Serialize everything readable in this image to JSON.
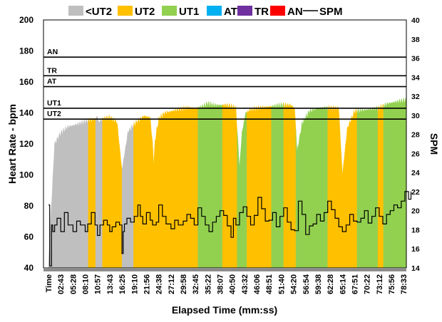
{
  "chart_data": {
    "type": "area",
    "title": "",
    "xlabel": "Elapsed Time (mm:ss)",
    "ylabel": "Heart Rate - bpm",
    "y2label": "SPM",
    "ylim": [
      40,
      200
    ],
    "y2lim": [
      14,
      40
    ],
    "yticks": [
      40,
      60,
      80,
      100,
      120,
      140,
      160,
      180,
      200
    ],
    "y2ticks": [
      14,
      16,
      18,
      20,
      22,
      24,
      26,
      28,
      30,
      32,
      34,
      36,
      38,
      40
    ],
    "x_tick_labels": [
      "Time",
      "02:43",
      "05:28",
      "08:10",
      "10:57",
      "13:43",
      "16:25",
      "19:10",
      "21:56",
      "24:38",
      "27:12",
      "29:58",
      "32:45",
      "35:22",
      "38:07",
      "40:50",
      "43:32",
      "46:06",
      "48:51",
      "51:40",
      "54:20",
      "56:54",
      "59:38",
      "62:28",
      "65:14",
      "67:51",
      "70:22",
      "73:12",
      "75:56",
      "78:33"
    ],
    "legend": {
      "placement": "top",
      "entries": [
        {
          "label": "<UT2",
          "color": "#bfbfbf",
          "kind": "area"
        },
        {
          "label": "UT2",
          "color": "#ffc000",
          "kind": "area"
        },
        {
          "label": "UT1",
          "color": "#92d050",
          "kind": "area"
        },
        {
          "label": "AT",
          "color": "#00b0f0",
          "kind": "area"
        },
        {
          "label": "TR",
          "color": "#7030a0",
          "kind": "area"
        },
        {
          "label": "AN",
          "color": "#ff0000",
          "kind": "area"
        },
        {
          "label": "SPM",
          "color": "#000000",
          "kind": "line"
        }
      ]
    },
    "zone_thresholds": [
      {
        "label": "UT2",
        "hr": 136
      },
      {
        "label": "UT1",
        "hr": 143
      },
      {
        "label": "AT",
        "hr": 157
      },
      {
        "label": "TR",
        "hr": 164
      },
      {
        "label": "AN",
        "hr": 176
      }
    ],
    "hr_series": {
      "name": "Heart Rate",
      "x_tick_index": [
        0,
        0.5,
        1,
        1.6,
        2.5,
        3.2,
        3.8,
        4.0,
        4.1,
        4.4,
        5.0,
        5.6,
        6.0,
        6.5,
        7.2,
        7.8,
        8.3,
        8.5,
        8.6,
        8.7,
        9.0,
        9.5,
        10.0,
        10.6,
        11.3,
        12.0,
        12.5,
        12.8,
        13.0,
        13.5,
        14.5,
        15.0,
        15.3,
        15.6,
        15.8,
        16.1,
        16.5,
        17.2,
        18.0,
        19.0,
        19.8,
        20.1,
        20.3,
        20.7,
        21.3,
        22.0,
        23.0,
        23.7,
        24.0,
        24.4,
        25.0,
        26.0,
        27.0,
        27.7,
        28.3,
        29.0,
        29.6
      ],
      "bpm": [
        43,
        120,
        127,
        131,
        133,
        135,
        136,
        138,
        134,
        136,
        137,
        134,
        103,
        128,
        134,
        138,
        137,
        120,
        107,
        122,
        136,
        140,
        141,
        142,
        143,
        143,
        144,
        145,
        146,
        145,
        145,
        144,
        143,
        105,
        127,
        140,
        142,
        143,
        144,
        145,
        145,
        143,
        115,
        133,
        141,
        143,
        143,
        143,
        100,
        130,
        141,
        142,
        143,
        146,
        147,
        148,
        149
      ],
      "zone_segments": [
        {
          "zone": "<UT2",
          "from": 0,
          "to": 3.25
        },
        {
          "zone": "UT2",
          "from": 3.25,
          "to": 3.85
        },
        {
          "zone": "<UT2",
          "from": 3.85,
          "to": 4.4
        },
        {
          "zone": "UT2",
          "from": 4.4,
          "to": 6.0
        },
        {
          "zone": "<UT2",
          "from": 6.0,
          "to": 6.95
        },
        {
          "zone": "UT2",
          "from": 6.95,
          "to": 12.2
        },
        {
          "zone": "UT1",
          "from": 12.2,
          "to": 14.2
        },
        {
          "zone": "UT2",
          "from": 14.2,
          "to": 15.4
        },
        {
          "zone": "UT1",
          "from": 15.4,
          "to": 16.2
        },
        {
          "zone": "UT2",
          "from": 16.2,
          "to": 18.2
        },
        {
          "zone": "UT1",
          "from": 18.2,
          "to": 19.2
        },
        {
          "zone": "UT2",
          "from": 19.2,
          "to": 20.2
        },
        {
          "zone": "UT1",
          "from": 20.2,
          "to": 22.8
        },
        {
          "zone": "UT2",
          "from": 22.8,
          "to": 23.85
        },
        {
          "zone": "UT2",
          "from": 23.85,
          "to": 25.2
        },
        {
          "zone": "UT1",
          "from": 25.2,
          "to": 26.9
        },
        {
          "zone": "UT2",
          "from": 26.9,
          "to": 27.35
        },
        {
          "zone": "UT1",
          "from": 27.35,
          "to": 29.6
        }
      ]
    },
    "spm_series": {
      "name": "SPM",
      "x_tick_index": [
        0,
        0.1,
        0.25,
        0.35,
        0.5,
        0.7,
        1.0,
        1.3,
        1.6,
        2.0,
        2.3,
        2.6,
        3.0,
        3.2,
        3.5,
        3.8,
        4.0,
        4.2,
        4.5,
        4.8,
        5.0,
        5.2,
        5.5,
        5.8,
        6.0,
        6.1,
        6.2,
        6.4,
        6.7,
        7.0,
        7.3,
        7.5,
        7.7,
        8.0,
        8.3,
        8.5,
        8.8,
        9.0,
        9.3,
        9.6,
        10.0,
        10.3,
        10.6,
        11.0,
        11.3,
        11.6,
        11.9,
        12.2,
        12.5,
        12.8,
        13.1,
        13.4,
        13.7,
        14.0,
        14.3,
        14.6,
        14.9,
        15.1,
        15.3,
        15.6,
        15.9,
        16.2,
        16.5,
        16.8,
        17.1,
        17.4,
        17.7,
        18.0,
        18.3,
        18.6,
        18.9,
        19.2,
        19.5,
        19.8,
        20.1,
        20.4,
        20.7,
        21.0,
        21.3,
        21.6,
        21.9,
        22.2,
        22.5,
        22.8,
        23.1,
        23.4,
        23.7,
        24.0,
        24.3,
        24.6,
        24.9,
        25.2,
        25.5,
        25.8,
        26.1,
        26.4,
        26.7,
        27.0,
        27.3,
        27.6,
        27.9,
        28.2,
        28.5,
        28.8,
        29.1,
        29.4,
        29.6
      ],
      "values": [
        20.6,
        14.2,
        18.5,
        17.8,
        18.5,
        19.2,
        17.8,
        19.8,
        18.5,
        17.8,
        18.9,
        18.5,
        17.8,
        18.6,
        19.8,
        18.5,
        17.4,
        18.5,
        19.0,
        18.5,
        17.8,
        18.3,
        18.8,
        18.5,
        15.5,
        17.8,
        18.6,
        19.2,
        18.8,
        19.4,
        20.6,
        19.4,
        18.6,
        19.8,
        19.0,
        18.5,
        18.8,
        20.6,
        19.4,
        18.6,
        18.1,
        19.0,
        18.5,
        18.9,
        19.6,
        19.2,
        18.5,
        20.3,
        19.4,
        18.5,
        17.8,
        18.8,
        19.4,
        20.0,
        19.5,
        18.4,
        17.2,
        19.2,
        18.5,
        19.8,
        20.4,
        19.4,
        18.5,
        19.5,
        21.4,
        20.2,
        18.9,
        19.0,
        19.8,
        18.3,
        19.4,
        20.3,
        18.8,
        18.0,
        17.9,
        21.0,
        19.6,
        17.5,
        18.4,
        18.6,
        19.6,
        18.9,
        19.8,
        21.0,
        20.1,
        19.2,
        18.3,
        17.8,
        18.5,
        19.6,
        18.9,
        18.8,
        19.2,
        20.0,
        18.7,
        19.4,
        20.3,
        19.4,
        18.6,
        19.6,
        20.0,
        20.6,
        20.3,
        21.0,
        22.0,
        21.2,
        22.0
      ]
    }
  }
}
